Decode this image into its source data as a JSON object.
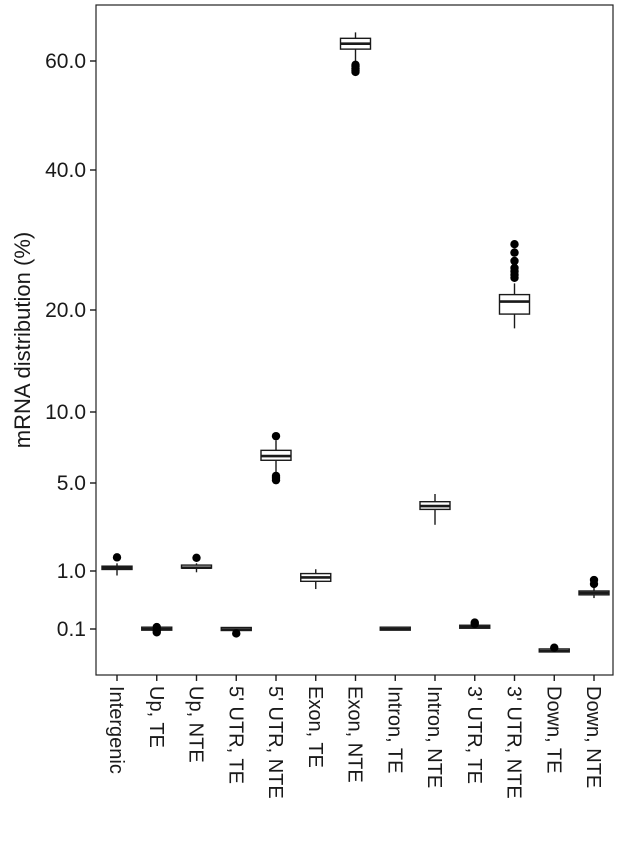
{
  "chart_data": {
    "type": "box",
    "ylabel": "mRNA distribution (%)",
    "y_scale": "piecewise (compressed near zero)",
    "yticks": [
      {
        "value": 0.1,
        "label": "0.1"
      },
      {
        "value": 1.0,
        "label": "1.0"
      },
      {
        "value": 5.0,
        "label": "5.0"
      },
      {
        "value": 10.0,
        "label": "10.0"
      },
      {
        "value": 20.0,
        "label": "20.0"
      },
      {
        "value": 40.0,
        "label": "40.0"
      },
      {
        "value": 60.0,
        "label": "60.0"
      }
    ],
    "categories": [
      "Intergenic",
      "Up, TE",
      "Up, NTE",
      "5' UTR, TE",
      "5' UTR, NTE",
      "Exon, TE",
      "Exon, NTE",
      "Intron, TE",
      "Intron, NTE",
      "3' UTR, TE",
      "3' UTR, NTE",
      "Down, TE",
      "Down, NTE"
    ],
    "boxes": [
      {
        "min": 0.93,
        "q1": 1.07,
        "median": 1.15,
        "q3": 1.22,
        "max": 1.35,
        "outliers": [
          1.62
        ]
      },
      {
        "min": 0.09,
        "q1": 0.095,
        "median": 0.1,
        "q3": 0.105,
        "max": 0.11,
        "outliers": [
          0.07,
          0.085,
          0.13
        ]
      },
      {
        "min": 0.98,
        "q1": 1.1,
        "median": 1.15,
        "q3": 1.2,
        "max": 1.35,
        "outliers": [
          1.6
        ]
      },
      {
        "min": 0.085,
        "q1": 0.09,
        "median": 0.095,
        "q3": 0.1,
        "max": 0.105,
        "outliers": [
          0.06
        ]
      },
      {
        "min": 5.7,
        "q1": 6.6,
        "median": 6.9,
        "q3": 7.3,
        "max": 8.0,
        "outliers": [
          5.2,
          5.35,
          5.5,
          8.3
        ]
      },
      {
        "min": 0.72,
        "q1": 0.84,
        "median": 0.9,
        "q3": 0.96,
        "max": 1.08,
        "outliers": []
      },
      {
        "min": 60.0,
        "q1": 62.2,
        "median": 63.2,
        "q3": 64.2,
        "max": 65.3,
        "outliers": [
          58.0,
          58.3,
          58.6,
          59.0,
          59.3
        ]
      },
      {
        "min": 0.09,
        "q1": 0.095,
        "median": 0.1,
        "q3": 0.105,
        "max": 0.11,
        "outliers": []
      },
      {
        "min": 3.1,
        "q1": 3.8,
        "median": 3.95,
        "q3": 4.15,
        "max": 4.5,
        "outliers": []
      },
      {
        "min": 0.12,
        "q1": 0.125,
        "median": 0.13,
        "q3": 0.135,
        "max": 0.14,
        "outliers": [
          0.18,
          0.2
        ]
      },
      {
        "min": 18.2,
        "q1": 19.6,
        "median": 21.2,
        "q3": 22.2,
        "max": 23.8,
        "outliers": [
          24.6,
          25.0,
          25.5,
          26.0,
          27.0,
          28.2,
          29.4
        ]
      },
      {
        "min": -0.11,
        "q1": -0.105,
        "median": -0.1,
        "q3": -0.095,
        "max": -0.09,
        "outliers": [
          -0.07
        ]
      },
      {
        "min": 0.58,
        "q1": 0.63,
        "median": 0.66,
        "q3": 0.69,
        "max": 0.74,
        "outliers": [
          0.8,
          0.86
        ]
      }
    ]
  }
}
